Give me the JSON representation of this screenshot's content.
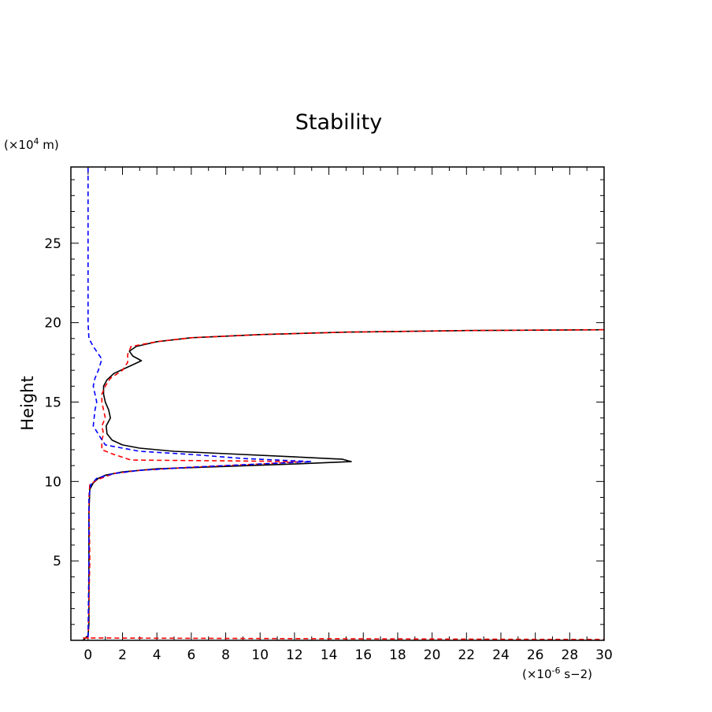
{
  "chart_data": {
    "type": "line",
    "title": "Stability",
    "xlabel": "",
    "ylabel": "Height",
    "x_unit": {
      "pre": "(×10",
      "exp": "-6",
      "post": " s−2)"
    },
    "y_unit": {
      "pre": "(×10",
      "exp": "4",
      "post": " m)"
    },
    "xlim": [
      -1,
      30
    ],
    "ylim": [
      0,
      29.8
    ],
    "xticks": [
      0,
      2,
      4,
      6,
      8,
      10,
      12,
      14,
      16,
      18,
      20,
      22,
      24,
      26,
      28,
      30
    ],
    "yticks": [
      5,
      10,
      15,
      20,
      25
    ],
    "grid": false,
    "series": [
      {
        "color": "#000000",
        "dash": "solid",
        "points": [
          [
            -0.3,
            0
          ],
          [
            0,
            0.3
          ],
          [
            0.05,
            1
          ],
          [
            0.05,
            5
          ],
          [
            0.05,
            8
          ],
          [
            0.1,
            9.5
          ],
          [
            0.3,
            9.9
          ],
          [
            0.6,
            10.2
          ],
          [
            1,
            10.4
          ],
          [
            2,
            10.6
          ],
          [
            4,
            10.8
          ],
          [
            8,
            10.95
          ],
          [
            12,
            11.1
          ],
          [
            15.3,
            11.25
          ],
          [
            14.8,
            11.4
          ],
          [
            12,
            11.55
          ],
          [
            8,
            11.75
          ],
          [
            5,
            11.9
          ],
          [
            3,
            12.1
          ],
          [
            2,
            12.3
          ],
          [
            1.4,
            12.6
          ],
          [
            1.1,
            13
          ],
          [
            1.05,
            13.5
          ],
          [
            1.3,
            14
          ],
          [
            1.2,
            14.5
          ],
          [
            1,
            15
          ],
          [
            0.9,
            15.5
          ],
          [
            0.9,
            16
          ],
          [
            1.1,
            16.4
          ],
          [
            1.5,
            16.8
          ],
          [
            2.5,
            17.3
          ],
          [
            3.1,
            17.6
          ],
          [
            2.6,
            17.9
          ],
          [
            2.4,
            18.2
          ],
          [
            2.8,
            18.5
          ],
          [
            4,
            18.8
          ],
          [
            6,
            19.05
          ],
          [
            10,
            19.25
          ],
          [
            15,
            19.4
          ],
          [
            22,
            19.5
          ],
          [
            30,
            19.55
          ]
        ]
      },
      {
        "color": "#ff0000",
        "dash": "dashed",
        "points": [
          [
            0,
            0.1
          ],
          [
            0.1,
            5
          ],
          [
            0.05,
            9
          ],
          [
            0.1,
            9.8
          ],
          [
            0.5,
            10.1
          ],
          [
            1.5,
            10.5
          ],
          [
            3,
            10.7
          ],
          [
            6,
            10.9
          ],
          [
            10,
            11.1
          ],
          [
            12.5,
            11.25
          ],
          [
            8,
            11.3
          ],
          [
            2.5,
            11.35
          ],
          [
            1.5,
            11.7
          ],
          [
            0.8,
            12
          ],
          [
            0.8,
            12.6
          ],
          [
            0.9,
            13
          ],
          [
            0.8,
            13.5
          ],
          [
            1,
            14
          ],
          [
            0.9,
            14.5
          ],
          [
            0.8,
            15
          ],
          [
            0.8,
            15.5
          ],
          [
            1,
            16
          ],
          [
            1.3,
            16.5
          ],
          [
            2,
            17
          ],
          [
            2.3,
            17.5
          ],
          [
            2.3,
            18
          ],
          [
            2.5,
            18.5
          ],
          [
            4,
            18.8
          ],
          [
            6,
            19.05
          ],
          [
            10,
            19.25
          ],
          [
            15,
            19.4
          ],
          [
            22,
            19.5
          ],
          [
            30,
            19.55
          ]
        ]
      },
      {
        "color": "#0000ff",
        "dash": "dashed",
        "points": [
          [
            0,
            0.2
          ],
          [
            0.05,
            5
          ],
          [
            0.05,
            9
          ],
          [
            0.15,
            9.8
          ],
          [
            0.5,
            10.2
          ],
          [
            1.5,
            10.5
          ],
          [
            3,
            10.7
          ],
          [
            6,
            10.9
          ],
          [
            10,
            11.1
          ],
          [
            13,
            11.25
          ],
          [
            9,
            11.45
          ],
          [
            6,
            11.7
          ],
          [
            3,
            11.9
          ],
          [
            1,
            12.3
          ],
          [
            0.7,
            12.8
          ],
          [
            0.3,
            13.5
          ],
          [
            0.4,
            14.5
          ],
          [
            0.5,
            15
          ],
          [
            0.4,
            15.5
          ],
          [
            0.3,
            16
          ],
          [
            0.4,
            16.5
          ],
          [
            0.6,
            17
          ],
          [
            0.8,
            17.7
          ],
          [
            0.3,
            18.5
          ],
          [
            0.05,
            19
          ],
          [
            0,
            20
          ],
          [
            0,
            25
          ],
          [
            0,
            29.8
          ]
        ]
      },
      {
        "color": "#ff0000",
        "dash": "dashed",
        "points": [
          [
            -0.3,
            0.15
          ],
          [
            30,
            0.05
          ]
        ]
      }
    ]
  }
}
